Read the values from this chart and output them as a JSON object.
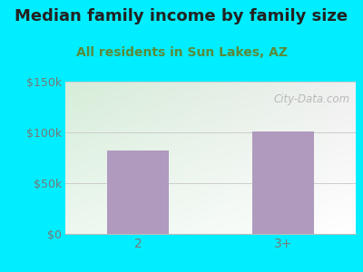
{
  "title": "Median family income by family size",
  "subtitle": "All residents in Sun Lakes, AZ",
  "categories": [
    "2",
    "3+"
  ],
  "values": [
    82000,
    101000
  ],
  "bar_color": "#b09abe",
  "ylim": [
    0,
    150000
  ],
  "yticks": [
    0,
    50000,
    100000,
    150000
  ],
  "ytick_labels": [
    "$0",
    "$50k",
    "$100k",
    "$150k"
  ],
  "outer_bg_color": "#00eeff",
  "plot_bg_top_left": "#d6edd8",
  "plot_bg_right": "#f0f0f0",
  "plot_bg_bottom": "#e8f5e8",
  "title_color": "#222222",
  "subtitle_color": "#5a8a3a",
  "tick_color": "#777777",
  "watermark_text": "City-Data.com",
  "title_fontsize": 13,
  "subtitle_fontsize": 10
}
